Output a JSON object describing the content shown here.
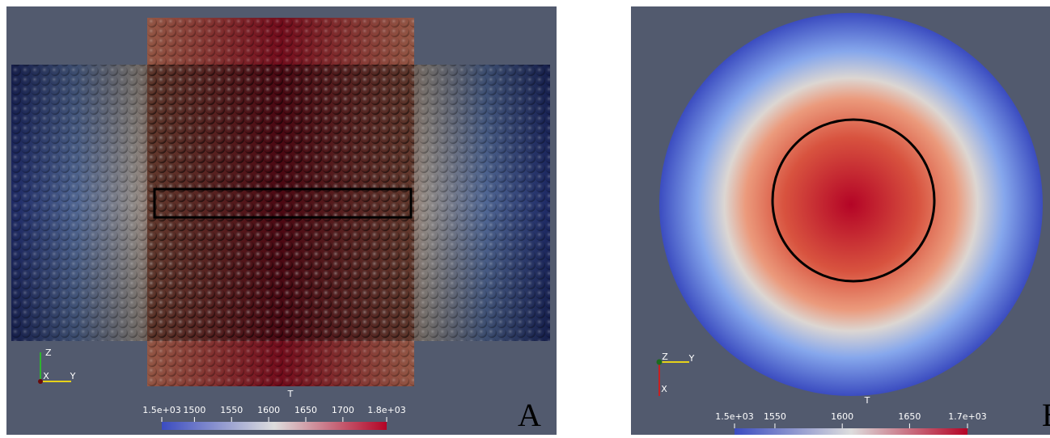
{
  "panels": [
    {
      "label": "A",
      "axes": [
        "Z",
        "X",
        "Y"
      ],
      "colorbar": {
        "title": "T",
        "range": [
          {
            "value": 1456,
            "label": "1.5e+03"
          },
          {
            "value": 1759,
            "label": "1.8e+03"
          }
        ],
        "ticks": [
          1500,
          1550,
          1600,
          1650,
          1700
        ]
      }
    },
    {
      "label": "B",
      "axes": [
        "Z",
        "Y",
        "X"
      ],
      "colorbar": {
        "title": "T",
        "range": [
          {
            "value": 1520,
            "label": "1.5e+03"
          },
          {
            "value": 1693,
            "label": "1.7e+03"
          }
        ],
        "ticks": [
          1550,
          1600,
          1650
        ]
      }
    }
  ]
}
